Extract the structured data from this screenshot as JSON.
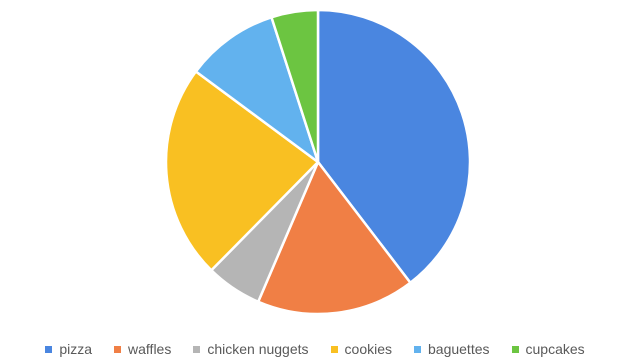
{
  "chart_data": {
    "type": "pie",
    "title": "",
    "start_angle_deg": 0,
    "direction": "clockwise",
    "legend_position": "bottom",
    "slice_border_color": "#ffffff",
    "categories": [
      "pizza",
      "waffles",
      "chicken nuggets",
      "cookies",
      "baguettes",
      "cupcakes"
    ],
    "values": [
      40,
      17,
      6,
      23,
      10,
      5
    ],
    "colors": [
      "#4a86e0",
      "#f07f45",
      "#b5b5b5",
      "#f9c022",
      "#62b2ee",
      "#6cc541"
    ]
  }
}
